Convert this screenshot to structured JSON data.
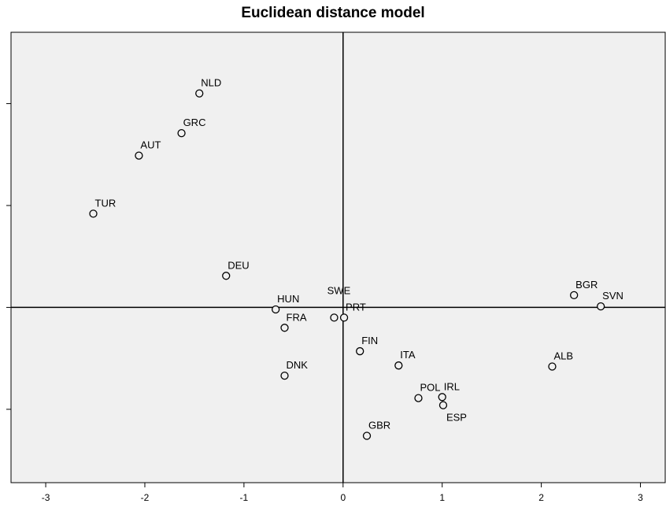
{
  "chart_data": {
    "type": "scatter",
    "title": "Euclidean distance model",
    "xlabel": "",
    "ylabel": "",
    "xlim": [
      -3.35,
      3.25
    ],
    "ylim": [
      -1.72,
      2.7
    ],
    "x_ticks": [
      -3,
      -2,
      -1,
      0,
      1,
      2,
      3
    ],
    "y_ticks": [
      -1,
      0,
      1,
      2
    ],
    "show_y_tick_labels": false,
    "reference_lines": {
      "x": 0,
      "y": 0
    },
    "background": "#f0f0f0",
    "marker": {
      "shape": "open-circle",
      "stroke": "#000000",
      "fill": "#f0f0f0"
    },
    "points": [
      {
        "label": "NLD",
        "x": -1.45,
        "y": 2.1,
        "label_pos": "above-right"
      },
      {
        "label": "GRC",
        "x": -1.63,
        "y": 1.71,
        "label_pos": "above-right"
      },
      {
        "label": "AUT",
        "x": -2.06,
        "y": 1.49,
        "label_pos": "above-right"
      },
      {
        "label": "TUR",
        "x": -2.52,
        "y": 0.92,
        "label_pos": "above-right"
      },
      {
        "label": "DEU",
        "x": -1.18,
        "y": 0.31,
        "label_pos": "above-right"
      },
      {
        "label": "HUN",
        "x": -0.68,
        "y": -0.02,
        "label_pos": "above-right"
      },
      {
        "label": "FRA",
        "x": -0.59,
        "y": -0.2,
        "label_pos": "above-right"
      },
      {
        "label": "SWE",
        "x": -0.09,
        "y": -0.1,
        "label_pos": "above"
      },
      {
        "label": "PRT",
        "x": 0.01,
        "y": -0.1,
        "label_pos": "above-right"
      },
      {
        "label": "FIN",
        "x": 0.17,
        "y": -0.43,
        "label_pos": "above-right"
      },
      {
        "label": "ITA",
        "x": 0.56,
        "y": -0.57,
        "label_pos": "above-right"
      },
      {
        "label": "DNK",
        "x": -0.59,
        "y": -0.67,
        "label_pos": "above-right"
      },
      {
        "label": "POL",
        "x": 0.76,
        "y": -0.89,
        "label_pos": "above-right"
      },
      {
        "label": "IRL",
        "x": 1.0,
        "y": -0.88,
        "label_pos": "above-right"
      },
      {
        "label": "ESP",
        "x": 1.01,
        "y": -0.96,
        "label_pos": "below-right"
      },
      {
        "label": "GBR",
        "x": 0.24,
        "y": -1.26,
        "label_pos": "above-right"
      },
      {
        "label": "BGR",
        "x": 2.33,
        "y": 0.12,
        "label_pos": "above-right"
      },
      {
        "label": "SVN",
        "x": 2.6,
        "y": 0.01,
        "label_pos": "above-right"
      },
      {
        "label": "ALB",
        "x": 2.11,
        "y": -0.58,
        "label_pos": "above-right"
      }
    ]
  }
}
